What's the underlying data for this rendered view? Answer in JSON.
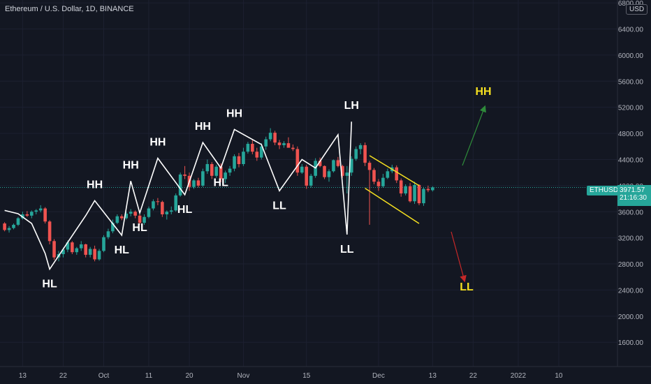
{
  "header": {
    "title": "Ethereum / U.S. Dollar, 1D, BINANCE",
    "currency_button": "USD"
  },
  "price_tag": {
    "symbol": "ETHUSD",
    "price": "3971.57",
    "countdown": "21:16:30"
  },
  "colors": {
    "background": "#131722",
    "up": "#26a69a",
    "down": "#ef5350",
    "structure_line": "#ffffff",
    "channel": "#f5e020",
    "arrow_up": "#2e8b3a",
    "arrow_down": "#c62828",
    "projection_label": "#f5e020",
    "current_price_line": "#26a69a"
  },
  "chart_data": {
    "type": "candlestick",
    "title": "Ethereum / U.S. Dollar, 1D, BINANCE",
    "ylim": [
      1200,
      6900
    ],
    "y_ticks": [
      "1600.00",
      "2000.00",
      "2400.00",
      "2800.00",
      "3200.00",
      "3600.00",
      "4000.00",
      "4400.00",
      "4800.00",
      "5200.00",
      "5600.00",
      "6000.00",
      "6400.00",
      "6800.00"
    ],
    "x_ticks": [
      {
        "date": "2021-09-13",
        "label": "13"
      },
      {
        "date": "2021-09-22",
        "label": "22"
      },
      {
        "date": "2021-10-01",
        "label": "Oct"
      },
      {
        "date": "2021-10-11",
        "label": "11"
      },
      {
        "date": "2021-10-20",
        "label": "20"
      },
      {
        "date": "2021-11-01",
        "label": "Nov"
      },
      {
        "date": "2021-11-15",
        "label": "15"
      },
      {
        "date": "2021-12-01",
        "label": "Dec"
      },
      {
        "date": "2021-12-13",
        "label": "13"
      },
      {
        "date": "2021-12-22",
        "label": "22"
      },
      {
        "date": "2022-01-01",
        "label": "2022"
      },
      {
        "date": "2022-01-10",
        "label": "10"
      }
    ],
    "start_date": "2021-09-09",
    "current_price": 3971.57,
    "structure_path": [
      [
        0,
        3620
      ],
      [
        3,
        3570
      ],
      [
        6,
        3420
      ],
      [
        9,
        2960
      ],
      [
        10,
        2720
      ],
      [
        18,
        3540
      ],
      [
        20,
        3770
      ],
      [
        26,
        3240
      ],
      [
        28,
        4070
      ],
      [
        30,
        3580
      ],
      [
        34,
        4420
      ],
      [
        40,
        3860
      ],
      [
        44,
        4660
      ],
      [
        48,
        4270
      ],
      [
        51,
        4860
      ],
      [
        57,
        4630
      ],
      [
        61,
        3920
      ],
      [
        66,
        4400
      ],
      [
        69,
        4270
      ],
      [
        74,
        4780
      ],
      [
        76,
        3250
      ],
      [
        77,
        4980
      ]
    ],
    "swing_labels": [
      {
        "text": "HL",
        "x": 10,
        "y": 2720,
        "pos": "below"
      },
      {
        "text": "HH",
        "x": 20,
        "y": 3770,
        "pos": "above"
      },
      {
        "text": "HL",
        "x": 26,
        "y": 3240,
        "pos": "below"
      },
      {
        "text": "HH",
        "x": 28,
        "y": 4070,
        "pos": "above"
      },
      {
        "text": "HL",
        "x": 30,
        "y": 3580,
        "pos": "below"
      },
      {
        "text": "HH",
        "x": 34,
        "y": 4420,
        "pos": "above"
      },
      {
        "text": "HL",
        "x": 40,
        "y": 3860,
        "pos": "below"
      },
      {
        "text": "HH",
        "x": 44,
        "y": 4660,
        "pos": "above"
      },
      {
        "text": "HL",
        "x": 48,
        "y": 4270,
        "pos": "below"
      },
      {
        "text": "HH",
        "x": 51,
        "y": 4860,
        "pos": "above"
      },
      {
        "text": "LL",
        "x": 61,
        "y": 3920,
        "pos": "below"
      },
      {
        "text": "LH",
        "x": 77,
        "y": 4980,
        "pos": "above"
      },
      {
        "text": "LL",
        "x": 76,
        "y": 3250,
        "pos": "below"
      }
    ],
    "projections": [
      {
        "text": "HH",
        "direction": "up"
      },
      {
        "text": "LL",
        "direction": "down"
      }
    ],
    "channel": {
      "upper": [
        [
          81,
          4460
        ],
        [
          92,
          4000
        ]
      ],
      "lower": [
        [
          80,
          3960
        ],
        [
          92,
          3420
        ]
      ]
    },
    "candles": [
      [
        3420,
        3440,
        3300,
        3320
      ],
      [
        3320,
        3380,
        3280,
        3350
      ],
      [
        3350,
        3420,
        3330,
        3400
      ],
      [
        3400,
        3520,
        3380,
        3500
      ],
      [
        3500,
        3600,
        3480,
        3560
      ],
      [
        3560,
        3610,
        3520,
        3540
      ],
      [
        3540,
        3620,
        3500,
        3600
      ],
      [
        3600,
        3640,
        3560,
        3620
      ],
      [
        3620,
        3700,
        3590,
        3650
      ],
      [
        3650,
        3670,
        3420,
        3450
      ],
      [
        3450,
        3470,
        3100,
        3150
      ],
      [
        3150,
        3180,
        2860,
        2900
      ],
      [
        2900,
        3000,
        2840,
        2950
      ],
      [
        2950,
        3050,
        2900,
        3020
      ],
      [
        3020,
        3160,
        2980,
        3130
      ],
      [
        3130,
        3150,
        2950,
        2980
      ],
      [
        2980,
        3060,
        2940,
        3040
      ],
      [
        3040,
        3150,
        3000,
        3100
      ],
      [
        3100,
        3110,
        2900,
        2940
      ],
      [
        2940,
        3060,
        2900,
        3030
      ],
      [
        3030,
        3080,
        2840,
        2870
      ],
      [
        2870,
        3030,
        2850,
        3000
      ],
      [
        3000,
        3240,
        2980,
        3210
      ],
      [
        3210,
        3340,
        3180,
        3300
      ],
      [
        3300,
        3480,
        3270,
        3430
      ],
      [
        3430,
        3560,
        3410,
        3530
      ],
      [
        3530,
        3560,
        3470,
        3500
      ],
      [
        3500,
        3600,
        3480,
        3570
      ],
      [
        3570,
        3640,
        3530,
        3600
      ],
      [
        3600,
        3620,
        3500,
        3540
      ],
      [
        3540,
        3560,
        3400,
        3430
      ],
      [
        3430,
        3560,
        3400,
        3520
      ],
      [
        3520,
        3680,
        3500,
        3650
      ],
      [
        3650,
        3790,
        3620,
        3760
      ],
      [
        3760,
        3810,
        3700,
        3750
      ],
      [
        3750,
        3770,
        3520,
        3560
      ],
      [
        3560,
        3620,
        3480,
        3600
      ],
      [
        3600,
        3680,
        3560,
        3620
      ],
      [
        3620,
        3880,
        3600,
        3850
      ],
      [
        3850,
        4200,
        3830,
        4170
      ],
      [
        4170,
        4300,
        4100,
        4150
      ],
      [
        4150,
        4200,
        3920,
        3980
      ],
      [
        3980,
        4100,
        3950,
        4080
      ],
      [
        4080,
        4120,
        3970,
        4000
      ],
      [
        4000,
        4260,
        3980,
        4220
      ],
      [
        4220,
        4400,
        4180,
        4330
      ],
      [
        4330,
        4360,
        4100,
        4150
      ],
      [
        4150,
        4320,
        4120,
        4290
      ],
      [
        4290,
        4340,
        4050,
        4100
      ],
      [
        4100,
        4230,
        4040,
        4200
      ],
      [
        4200,
        4300,
        4150,
        4260
      ],
      [
        4260,
        4480,
        4220,
        4450
      ],
      [
        4450,
        4500,
        4280,
        4330
      ],
      [
        4330,
        4580,
        4300,
        4520
      ],
      [
        4520,
        4670,
        4490,
        4640
      ],
      [
        4640,
        4700,
        4480,
        4520
      ],
      [
        4520,
        4580,
        4380,
        4430
      ],
      [
        4430,
        4650,
        4400,
        4600
      ],
      [
        4600,
        4750,
        4550,
        4710
      ],
      [
        4710,
        4880,
        4680,
        4810
      ],
      [
        4810,
        4840,
        4620,
        4660
      ],
      [
        4660,
        4700,
        4560,
        4620
      ],
      [
        4620,
        4680,
        4580,
        4650
      ],
      [
        4650,
        4740,
        4600,
        4580
      ],
      [
        4580,
        4630,
        4530,
        4560
      ],
      [
        4560,
        4600,
        4150,
        4200
      ],
      [
        4200,
        4330,
        4180,
        4290
      ],
      [
        4290,
        4320,
        3950,
        4000
      ],
      [
        4000,
        4180,
        3970,
        4150
      ],
      [
        4150,
        4420,
        4120,
        4380
      ],
      [
        4380,
        4430,
        4280,
        4300
      ],
      [
        4300,
        4310,
        4100,
        4130
      ],
      [
        4130,
        4250,
        4060,
        4220
      ],
      [
        4220,
        4400,
        4200,
        4390
      ],
      [
        4390,
        4440,
        4280,
        4300
      ],
      [
        4300,
        4320,
        4120,
        4150
      ],
      [
        4150,
        4300,
        3880,
        4200
      ],
      [
        4200,
        4450,
        4150,
        4410
      ],
      [
        4410,
        4600,
        4380,
        4560
      ],
      [
        4560,
        4650,
        4480,
        4620
      ],
      [
        4620,
        4660,
        4300,
        4350
      ],
      [
        4350,
        4380,
        3400,
        4240
      ],
      [
        4240,
        4270,
        4020,
        4060
      ],
      [
        4060,
        4100,
        3920,
        3990
      ],
      [
        3990,
        4180,
        3970,
        4120
      ],
      [
        4120,
        4260,
        4100,
        4220
      ],
      [
        4220,
        4320,
        4190,
        4280
      ],
      [
        4280,
        4310,
        4040,
        4080
      ],
      [
        4080,
        4110,
        3830,
        3880
      ],
      [
        3880,
        4020,
        3850,
        3990
      ],
      [
        3990,
        4040,
        3740,
        3760
      ],
      [
        3760,
        4060,
        3720,
        4010
      ],
      [
        4010,
        4020,
        3700,
        3730
      ],
      [
        3730,
        3980,
        3690,
        3950
      ],
      [
        3950,
        4000,
        3900,
        3930
      ],
      [
        3930,
        3990,
        3910,
        3972
      ]
    ]
  }
}
